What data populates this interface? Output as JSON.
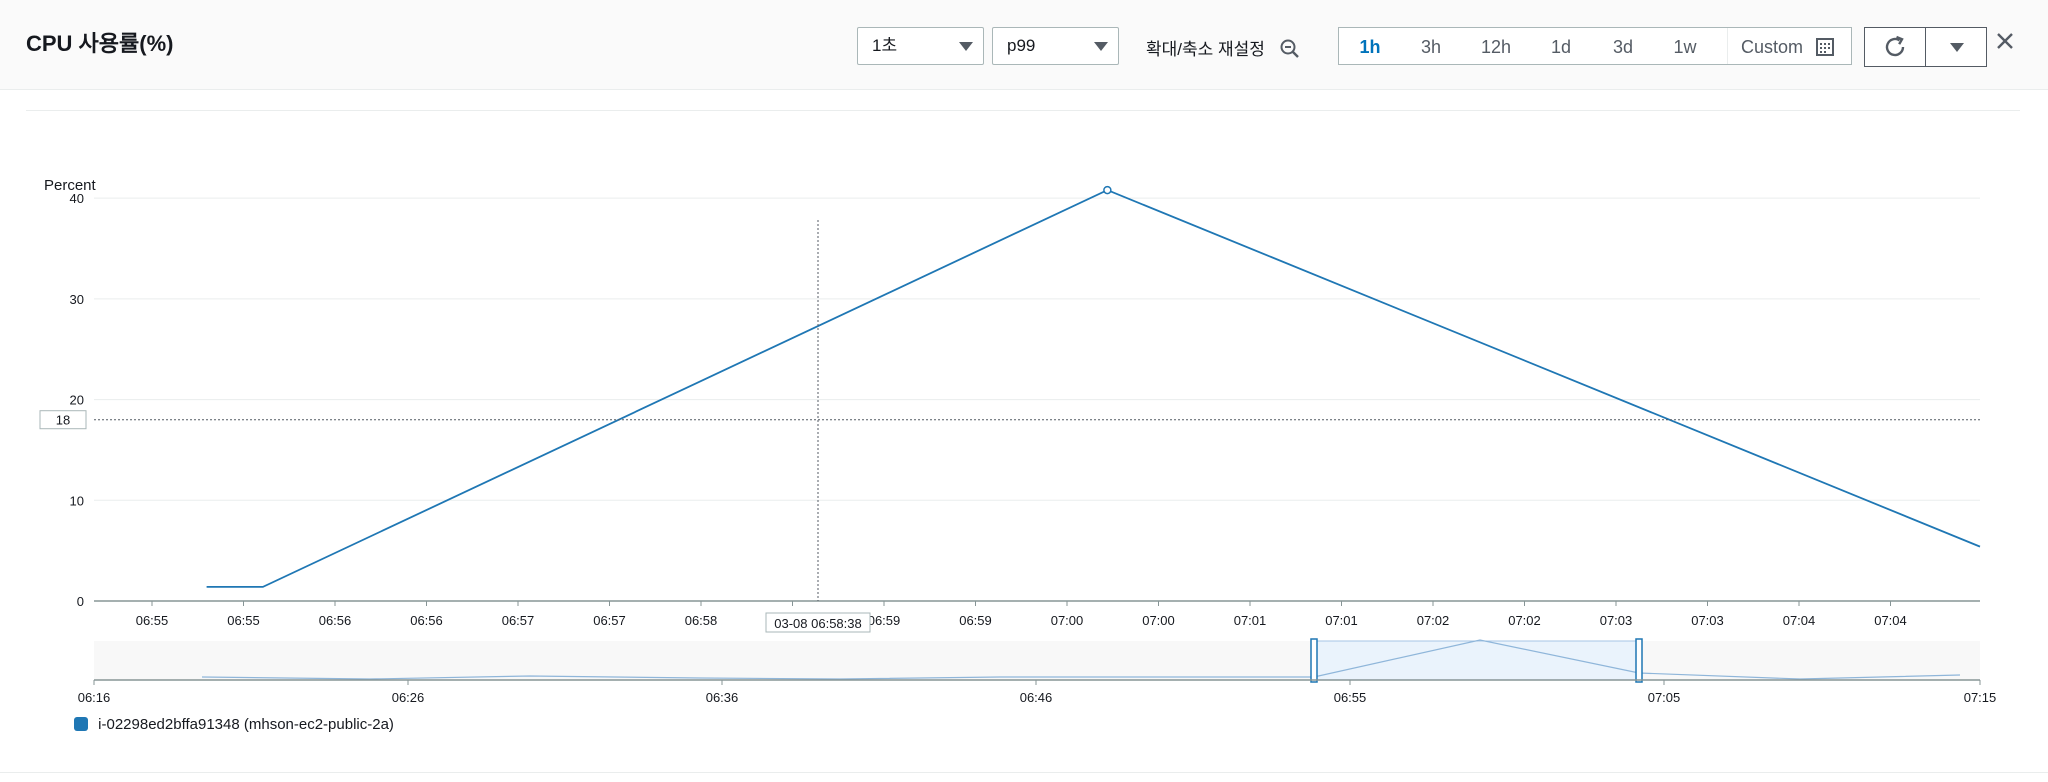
{
  "header": {
    "title": "CPU 사용률(%)",
    "period_select": "1초",
    "statistic_select": "p99",
    "zoom_reset_label": "확대/축소 재설정",
    "ranges": [
      {
        "label": "1h",
        "active": true
      },
      {
        "label": "3h",
        "active": false
      },
      {
        "label": "12h",
        "active": false
      },
      {
        "label": "1d",
        "active": false
      },
      {
        "label": "3d",
        "active": false
      },
      {
        "label": "1w",
        "active": false
      }
    ],
    "custom_label": "Custom",
    "icons": {
      "zoom": "zoom-out-icon",
      "calendar": "calendar-icon",
      "refresh": "refresh-icon",
      "dropdown": "caret-down-icon",
      "close": "close-icon"
    }
  },
  "chart_data": {
    "type": "line",
    "ylabel": "Percent",
    "ylim": [
      0,
      42
    ],
    "yticks": [
      "0",
      "10",
      "20",
      "30",
      "40"
    ],
    "xticks": [
      "06:55",
      "06:55",
      "06:56",
      "06:56",
      "06:57",
      "06:57",
      "06:58",
      "06:58",
      "06:59",
      "06:59",
      "07:00",
      "07:00",
      "07:01",
      "07:01",
      "07:02",
      "07:02",
      "07:03",
      "07:03",
      "07:04",
      "07:04"
    ],
    "series": [
      {
        "name": "i-02298ed2bffa91348 (mhson-ec2-public-2a)",
        "color": "#1f77b4",
        "points": [
          {
            "t": "06:54:40",
            "y": 1.4
          },
          {
            "t": "06:55:00",
            "y": 1.4
          },
          {
            "t": "07:00:00",
            "y": 40.8
          },
          {
            "t": "07:05:10",
            "y": 5.4
          }
        ]
      }
    ],
    "crosshair": {
      "x_label": "03-08 06:58:38",
      "y_label": "18"
    },
    "navigator": {
      "xticks": [
        "06:16",
        "06:26",
        "06:36",
        "06:46",
        "06:55",
        "07:05",
        "07:15"
      ],
      "selected_range": [
        "06:54",
        "07:05"
      ]
    },
    "legend_position": "bottom-left",
    "grid": true
  }
}
